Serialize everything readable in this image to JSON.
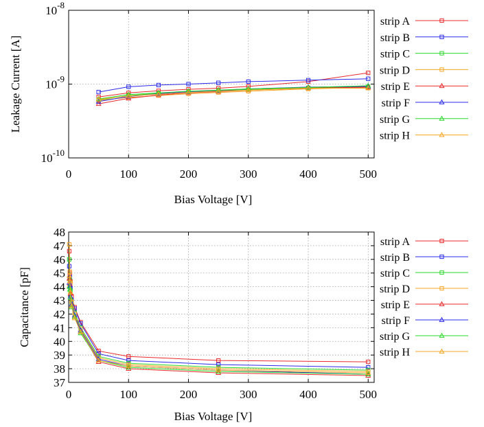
{
  "chart_data": [
    {
      "type": "line",
      "xlabel": "Bias Voltage [V]",
      "ylabel": "Leakage Current [A]",
      "xlim": [
        0,
        510
      ],
      "ylim": [
        1e-10,
        1e-08
      ],
      "yscale": "log",
      "grid": true,
      "legend_position": "right",
      "x_ticks": [
        "0",
        "100",
        "200",
        "300",
        "400",
        "500"
      ],
      "y_ticks": [
        {
          "base": "10",
          "exp": "-10",
          "value": 1e-10
        },
        {
          "base": "10",
          "exp": "-9",
          "value": 1e-09
        },
        {
          "base": "10",
          "exp": "-8",
          "value": 1e-08
        }
      ],
      "x": [
        50,
        100,
        150,
        200,
        250,
        300,
        400,
        500
      ],
      "series": [
        {
          "name": "strip A",
          "color": "#e8282a",
          "marker": "square",
          "values": [
            6.7e-10,
            7.6e-10,
            8.1e-10,
            8.5e-10,
            8.8e-10,
            9.3e-10,
            1.08e-09,
            1.42e-09
          ]
        },
        {
          "name": "strip B",
          "color": "#2a2ae8",
          "marker": "square",
          "values": [
            7.8e-10,
            9.2e-10,
            9.7e-10,
            1e-09,
            1.04e-09,
            1.08e-09,
            1.13e-09,
            1.18e-09
          ]
        },
        {
          "name": "strip C",
          "color": "#2ad82a",
          "marker": "square",
          "values": [
            6.1e-10,
            7e-10,
            7.5e-10,
            7.9e-10,
            8.1e-10,
            8.4e-10,
            8.9e-10,
            9.2e-10
          ]
        },
        {
          "name": "strip D",
          "color": "#f5a623",
          "marker": "square",
          "values": [
            6e-10,
            6.6e-10,
            7e-10,
            7.4e-10,
            7.7e-10,
            8e-10,
            8.6e-10,
            9e-10
          ]
        },
        {
          "name": "strip E",
          "color": "#e8282a",
          "marker": "triangle",
          "values": [
            5.4e-10,
            6.4e-10,
            7.1e-10,
            7.6e-10,
            7.9e-10,
            8.3e-10,
            8.8e-10,
            9.1e-10
          ]
        },
        {
          "name": "strip F",
          "color": "#2a2ae8",
          "marker": "triangle",
          "values": [
            5.8e-10,
            6.8e-10,
            7.4e-10,
            7.9e-10,
            8.2e-10,
            8.6e-10,
            9.1e-10,
            9.3e-10
          ]
        },
        {
          "name": "strip G",
          "color": "#2ad82a",
          "marker": "triangle",
          "values": [
            6.3e-10,
            7.2e-10,
            7.6e-10,
            8e-10,
            8.3e-10,
            8.6e-10,
            9e-10,
            9.5e-10
          ]
        },
        {
          "name": "strip H",
          "color": "#f5a623",
          "marker": "triangle",
          "values": [
            6.2e-10,
            6.9e-10,
            7.3e-10,
            7.7e-10,
            8e-10,
            8.3e-10,
            8.8e-10,
            8.8e-10
          ]
        }
      ]
    },
    {
      "type": "line",
      "xlabel": "Bias Voltage [V]",
      "ylabel": "Capacitance [pF]",
      "xlim": [
        0,
        510
      ],
      "ylim": [
        37,
        48
      ],
      "grid": true,
      "legend_position": "right",
      "x_ticks": [
        "0",
        "100",
        "200",
        "300",
        "400",
        "500"
      ],
      "y_ticks": [
        "37",
        "38",
        "39",
        "40",
        "41",
        "42",
        "43",
        "44",
        "45",
        "46",
        "47",
        "48"
      ],
      "x": [
        1,
        2,
        3,
        5,
        10,
        20,
        50,
        100,
        250,
        500
      ],
      "series": [
        {
          "name": "strip A",
          "color": "#e8282a",
          "marker": "square",
          "values": [
            46.6,
            45.0,
            44.4,
            43.3,
            42.5,
            41.4,
            39.3,
            38.9,
            38.6,
            38.5
          ]
        },
        {
          "name": "strip B",
          "color": "#2a2ae8",
          "marker": "square",
          "values": [
            45.5,
            44.7,
            43.9,
            43.0,
            42.4,
            41.3,
            39.1,
            38.6,
            38.3,
            38.1
          ]
        },
        {
          "name": "strip C",
          "color": "#2ad82a",
          "marker": "square",
          "values": [
            46.0,
            44.5,
            43.7,
            42.8,
            42.1,
            41.0,
            38.9,
            38.4,
            38.1,
            37.9
          ]
        },
        {
          "name": "strip D",
          "color": "#f5a623",
          "marker": "square",
          "values": [
            47.1,
            45.1,
            44.3,
            42.9,
            42.0,
            40.9,
            38.8,
            38.3,
            38.0,
            37.8
          ]
        },
        {
          "name": "strip E",
          "color": "#e8282a",
          "marker": "triangle",
          "values": [
            44.6,
            44.2,
            43.5,
            42.6,
            41.8,
            40.7,
            38.5,
            38.0,
            37.7,
            37.5
          ]
        },
        {
          "name": "strip F",
          "color": "#2a2ae8",
          "marker": "triangle",
          "values": [
            44.3,
            44.0,
            43.3,
            42.7,
            41.9,
            40.8,
            38.7,
            38.2,
            37.9,
            37.6
          ]
        },
        {
          "name": "strip G",
          "color": "#2ad82a",
          "marker": "triangle",
          "values": [
            44.0,
            43.8,
            43.2,
            42.5,
            41.8,
            40.6,
            38.6,
            38.1,
            37.8,
            37.6
          ]
        },
        {
          "name": "strip H",
          "color": "#f5a623",
          "marker": "triangle",
          "values": [
            44.8,
            44.4,
            43.6,
            42.6,
            41.7,
            40.7,
            38.6,
            38.2,
            37.9,
            37.7
          ]
        }
      ]
    }
  ]
}
